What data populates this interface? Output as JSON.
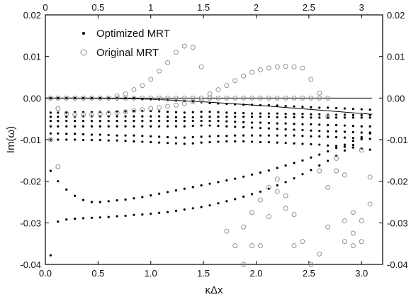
{
  "chart_data": {
    "type": "scatter",
    "title": "",
    "xlabel": "κΔx",
    "ylabel": "Im(ω)",
    "xlim": [
      0,
      3.2
    ],
    "ylim": [
      -0.04,
      0.02
    ],
    "x_ticks": [
      0,
      0.5,
      1.0,
      1.5,
      2.0,
      2.5,
      3.0
    ],
    "x_tick_labels": [
      "0.0",
      "0.5",
      "1.0",
      "1.5",
      "2.0",
      "2.5",
      "3.0"
    ],
    "top_x_tick_labels": [
      "0",
      "0.5",
      "1",
      "1.5",
      "2",
      "2.5",
      "3"
    ],
    "y_ticks": [
      0.02,
      0.01,
      0.0,
      -0.01,
      -0.02,
      -0.03,
      -0.04
    ],
    "y_tick_labels": [
      "0.02",
      "0.01",
      "0.00",
      "-0.01",
      "-0.02",
      "-0.03",
      "-0.04"
    ],
    "right_y_tick_labels": [
      "0.02",
      "0.01",
      "0.00",
      "-0.01",
      "-0.02",
      "-0.03",
      "-0.04"
    ],
    "grid": false,
    "legend_position": "top-left",
    "series": [
      {
        "name": "Optimized MRT",
        "marker": "filled-dot",
        "color": "#000000",
        "x": [
          0.05,
          0.12,
          0.2,
          0.28,
          0.36,
          0.44,
          0.52,
          0.6,
          0.68,
          0.76,
          0.84,
          0.92,
          1.0,
          1.08,
          1.16,
          1.24,
          1.32,
          1.4,
          1.48,
          1.56,
          1.64,
          1.72,
          1.8,
          1.88,
          1.96,
          2.04,
          2.12,
          2.2,
          2.28,
          2.36,
          2.44,
          2.52,
          2.6,
          2.68,
          2.76,
          2.84,
          2.92,
          3.0,
          3.08,
          0.05,
          0.12,
          0.2,
          0.28,
          0.36,
          0.44,
          0.52,
          0.6,
          0.68,
          0.76,
          0.84,
          0.92,
          1.0,
          1.08,
          1.16,
          1.24,
          1.32,
          1.4,
          1.48,
          1.56,
          1.64,
          1.72,
          1.8,
          1.88,
          1.96,
          2.04,
          2.12,
          2.2,
          2.28,
          2.36,
          2.44,
          2.52,
          2.6,
          2.68,
          2.76,
          2.84,
          2.92,
          3.0,
          3.08,
          0.05,
          0.12,
          0.2,
          0.28,
          0.36,
          0.44,
          0.52,
          0.6,
          0.68,
          0.76,
          0.84,
          0.92,
          1.0,
          1.08,
          1.16,
          1.24,
          1.32,
          1.4,
          1.48,
          1.56,
          1.64,
          1.72,
          1.8,
          1.88,
          1.96,
          2.04,
          2.12,
          2.2,
          2.28,
          2.36,
          2.44,
          2.52,
          2.6,
          2.68,
          2.76,
          2.84,
          2.92,
          3.0,
          3.08,
          0.05,
          0.12,
          0.2,
          0.28,
          0.36,
          0.44,
          0.52,
          0.6,
          0.68,
          0.76,
          0.84,
          0.92,
          1.0,
          1.08,
          1.16,
          1.24,
          1.32,
          1.4,
          1.48,
          1.56,
          1.64,
          1.72,
          1.8,
          1.88,
          1.96,
          2.04,
          2.12,
          2.2,
          2.28,
          2.36,
          2.44,
          2.52,
          2.6,
          2.68,
          2.76,
          2.84,
          2.92,
          3.0,
          3.08,
          0.05,
          0.12,
          0.2,
          0.28,
          0.36,
          0.44,
          0.52,
          0.6,
          0.68,
          0.76,
          0.84,
          0.92,
          1.0,
          1.08,
          1.16,
          1.24,
          1.32,
          1.4,
          1.48,
          1.56,
          1.64,
          1.72,
          1.8,
          1.88,
          1.96,
          2.04,
          2.12,
          2.2,
          2.28,
          2.36,
          2.44,
          2.52,
          2.6,
          2.68,
          2.76,
          2.84,
          2.92,
          3.0,
          3.08,
          0.05,
          0.12,
          0.2,
          0.28,
          0.36,
          0.44,
          0.52,
          0.6,
          0.68,
          0.76,
          0.84,
          0.92,
          1.0,
          1.08,
          1.16,
          1.24,
          1.32,
          1.4,
          1.48,
          1.56,
          1.64,
          1.72,
          1.8,
          1.88,
          1.96,
          2.04,
          2.12,
          2.2,
          2.28,
          2.36,
          2.44,
          2.52,
          2.6,
          2.68,
          2.76,
          2.84,
          2.92,
          3.0,
          3.08,
          0.05,
          0.12,
          0.2,
          0.28,
          0.36,
          0.44,
          0.52,
          0.6,
          0.68,
          0.76,
          0.84,
          0.92,
          1.0,
          1.08,
          1.16,
          1.24,
          1.32,
          1.4,
          1.48,
          1.56,
          1.64,
          1.72,
          1.8,
          1.88,
          1.96,
          2.04,
          2.12,
          2.2,
          2.28,
          2.36,
          2.44,
          2.52,
          2.6,
          2.68,
          2.76,
          2.84,
          2.92,
          3.0,
          3.08,
          0.05,
          0.12,
          0.2,
          0.28,
          0.36,
          0.44,
          0.52,
          0.6,
          0.68,
          0.76,
          0.84,
          0.92,
          1.0,
          1.08,
          1.16,
          1.24,
          1.32,
          1.4,
          1.48,
          1.56,
          1.64,
          1.72,
          1.8,
          1.88,
          1.96,
          2.04,
          2.12,
          2.2,
          2.28,
          2.36,
          2.44,
          2.52,
          2.6,
          2.68,
          2.76,
          2.84,
          2.92,
          3.0,
          3.08,
          0.05,
          0.12,
          0.2,
          0.28,
          0.36,
          0.44,
          0.52,
          0.6,
          0.68,
          0.76,
          0.84,
          0.92,
          1.0,
          1.08,
          1.16,
          1.24,
          1.32,
          1.4,
          1.48,
          1.56,
          1.64,
          1.72,
          1.8,
          1.88,
          1.96,
          2.04,
          2.12,
          2.2,
          2.28,
          2.36,
          2.44,
          2.52,
          2.6,
          2.68,
          2.76,
          2.84,
          2.92,
          3.0,
          3.08
        ],
        "y": [
          0.0,
          0.0,
          0.0,
          0.0,
          0.0,
          0.0,
          0.0,
          0.0,
          0.0,
          0.0,
          0.0,
          -0.0002,
          -0.0003,
          -0.0004,
          -0.0005,
          -0.0006,
          -0.0007,
          -0.0008,
          -0.001,
          -0.0012,
          -0.0013,
          -0.0014,
          -0.0015,
          -0.0016,
          -0.0016,
          -0.0017,
          -0.0017,
          -0.0018,
          -0.0019,
          -0.002,
          -0.0021,
          -0.0022,
          -0.0023,
          -0.0023,
          -0.0024,
          -0.0025,
          -0.0026,
          -0.0027,
          -0.0028,
          -0.0035,
          -0.0035,
          -0.0035,
          -0.0034,
          -0.0034,
          -0.0034,
          -0.0033,
          -0.0033,
          -0.0032,
          -0.0032,
          -0.0031,
          -0.0031,
          -0.0031,
          -0.0032,
          -0.0033,
          -0.0034,
          -0.0035,
          -0.0034,
          -0.0033,
          -0.0033,
          -0.0034,
          -0.0035,
          -0.0036,
          -0.0036,
          -0.0037,
          -0.0037,
          -0.0037,
          -0.0037,
          -0.0038,
          -0.0038,
          -0.0038,
          -0.0039,
          -0.0039,
          -0.004,
          -0.004,
          -0.004,
          -0.0041,
          -0.0041,
          -0.0041,
          -0.0045,
          -0.0045,
          -0.0045,
          -0.0045,
          -0.0044,
          -0.0044,
          -0.0044,
          -0.0044,
          -0.0044,
          -0.0044,
          -0.0044,
          -0.0044,
          -0.0044,
          -0.0044,
          -0.0045,
          -0.0046,
          -0.0046,
          -0.0046,
          -0.0045,
          -0.0045,
          -0.0045,
          -0.0045,
          -0.0045,
          -0.0045,
          -0.0045,
          -0.0045,
          -0.0045,
          -0.0046,
          -0.0046,
          -0.0046,
          -0.0046,
          -0.0047,
          -0.0047,
          -0.0047,
          -0.0047,
          -0.0047,
          -0.0047,
          -0.0047,
          -0.0047,
          -0.0055,
          -0.0055,
          -0.0055,
          -0.0055,
          -0.0055,
          -0.0055,
          -0.0055,
          -0.0055,
          -0.0055,
          -0.0055,
          -0.0055,
          -0.0055,
          -0.0055,
          -0.0055,
          -0.0055,
          -0.0055,
          -0.0055,
          -0.0055,
          -0.0055,
          -0.0055,
          -0.0055,
          -0.0056,
          -0.0057,
          -0.0058,
          -0.0059,
          -0.0059,
          -0.006,
          -0.0061,
          -0.0061,
          -0.0062,
          -0.0063,
          -0.0063,
          -0.0064,
          -0.0065,
          -0.0065,
          -0.0066,
          -0.0067,
          -0.0068,
          -0.0068,
          -0.0068,
          -0.0068,
          -0.0068,
          -0.0068,
          -0.0068,
          -0.0068,
          -0.0068,
          -0.0068,
          -0.0068,
          -0.0068,
          -0.0068,
          -0.0068,
          -0.0068,
          -0.0068,
          -0.0068,
          -0.0068,
          -0.0068,
          -0.0067,
          -0.0066,
          -0.0066,
          -0.0067,
          -0.0068,
          -0.0069,
          -0.007,
          -0.0071,
          -0.0072,
          -0.0073,
          -0.0074,
          -0.0075,
          -0.0076,
          -0.0077,
          -0.0078,
          -0.0079,
          -0.008,
          -0.008,
          -0.0081,
          -0.0082,
          -0.0083,
          -0.0083,
          -0.0085,
          -0.0085,
          -0.0086,
          -0.0086,
          -0.0087,
          -0.0088,
          -0.0088,
          -0.0089,
          -0.009,
          -0.009,
          -0.009,
          -0.0091,
          -0.0092,
          -0.0093,
          -0.0094,
          -0.0095,
          -0.0095,
          -0.0094,
          -0.0093,
          -0.0092,
          -0.0091,
          -0.0091,
          -0.009,
          -0.009,
          -0.009,
          -0.009,
          -0.009,
          -0.009,
          -0.009,
          -0.009,
          -0.0091,
          -0.0092,
          -0.0092,
          -0.0093,
          -0.0094,
          -0.0095,
          -0.0096,
          -0.0097,
          -0.0098,
          -0.01,
          -0.01,
          -0.01,
          -0.01,
          -0.0101,
          -0.0101,
          -0.0101,
          -0.0102,
          -0.0102,
          -0.0103,
          -0.0104,
          -0.0105,
          -0.0106,
          -0.0107,
          -0.0108,
          -0.0109,
          -0.011,
          -0.0109,
          -0.0107,
          -0.0106,
          -0.0105,
          -0.0104,
          -0.0104,
          -0.0104,
          -0.0105,
          -0.0106,
          -0.0106,
          -0.0107,
          -0.0108,
          -0.0109,
          -0.011,
          -0.0111,
          -0.0112,
          -0.0114,
          -0.0115,
          -0.0117,
          -0.0119,
          -0.0121,
          -0.0124,
          -0.0175,
          -0.02,
          -0.022,
          -0.0235,
          -0.0245,
          -0.025,
          -0.025,
          -0.0248,
          -0.0246,
          -0.0244,
          -0.0241,
          -0.0238,
          -0.0234,
          -0.023,
          -0.0226,
          -0.0222,
          -0.0218,
          -0.0214,
          -0.021,
          -0.0206,
          -0.0202,
          -0.0198,
          -0.0194,
          -0.0189,
          -0.0184,
          -0.0179,
          -0.0174,
          -0.0168,
          -0.0162,
          -0.0156,
          -0.015,
          -0.0143,
          -0.0136,
          -0.0128,
          -0.012,
          -0.0112,
          -0.0103,
          -0.0094,
          -0.0084,
          -0.0378,
          -0.0297,
          -0.0292,
          -0.029,
          -0.0289,
          -0.0288,
          -0.0287,
          -0.0286,
          -0.0284,
          -0.0283,
          -0.0281,
          -0.028,
          -0.0278,
          -0.0276,
          -0.0274,
          -0.0271,
          -0.0268,
          -0.0265,
          -0.0262,
          -0.0258,
          -0.0253,
          -0.0248,
          -0.0243,
          -0.0237,
          -0.0231,
          -0.0225,
          -0.0218,
          -0.021,
          -0.0202,
          -0.0193,
          -0.0183,
          -0.0173,
          -0.0162,
          -0.0151,
          -0.0139,
          -0.0126,
          -0.0113,
          -0.0099,
          -0.0085
        ]
      },
      {
        "name": "Original MRT",
        "marker": "open-circle",
        "color": "#888888",
        "x": [
          0.05,
          0.12,
          0.2,
          0.28,
          0.36,
          0.44,
          0.52,
          0.6,
          0.68,
          0.76,
          0.84,
          0.92,
          1.0,
          1.08,
          1.16,
          1.24,
          1.32,
          1.4,
          1.48,
          1.56,
          1.64,
          1.72,
          1.8,
          1.88,
          1.96,
          2.04,
          2.12,
          2.2,
          2.28,
          2.36,
          2.44,
          2.52,
          2.6,
          2.68,
          0.05,
          0.12,
          0.2,
          0.28,
          0.36,
          0.44,
          0.52,
          0.6,
          0.68,
          0.76,
          0.84,
          0.92,
          1.0,
          1.08,
          1.16,
          1.24,
          1.32,
          1.4,
          1.48,
          0.12,
          0.2,
          0.28,
          0.36,
          0.44,
          0.52,
          0.6,
          0.68,
          0.76,
          0.84,
          0.92,
          1.0,
          1.08,
          1.16,
          1.24,
          1.32,
          1.4,
          1.48,
          1.56,
          1.56,
          1.64,
          1.72,
          1.8,
          1.88,
          1.96,
          2.04,
          2.12,
          2.2,
          2.28,
          2.36,
          2.44,
          2.52,
          2.6,
          2.68,
          2.76,
          2.84,
          2.92,
          3.0,
          3.08,
          0.05,
          0.12,
          1.72,
          1.8,
          1.88,
          1.96,
          2.04,
          2.12,
          2.2,
          2.28,
          2.36,
          2.44,
          2.52,
          2.6,
          2.68,
          2.76,
          2.84,
          2.92,
          3.0,
          3.08,
          1.88,
          1.96,
          2.04,
          2.12,
          2.2,
          2.28,
          2.36,
          2.6,
          2.68,
          2.84,
          2.92,
          3.0
        ],
        "y": [
          0.0,
          0.0,
          0.0,
          0.0,
          0.0,
          0.0,
          0.0,
          0.0,
          0.0,
          0.0,
          0.0,
          0.0,
          0.0,
          0.0,
          0.0,
          0.0,
          0.0,
          0.0,
          0.0,
          0.0,
          0.0,
          0.0,
          0.0,
          0.0,
          0.0,
          0.0,
          0.0,
          0.0,
          0.0,
          0.0,
          0.0,
          0.0,
          0.0,
          0.0,
          0.0,
          0.0,
          0.0,
          0.0,
          0.0,
          0.0,
          0.0,
          0.0,
          0.0005,
          0.001,
          0.002,
          0.003,
          0.0045,
          0.0065,
          0.0085,
          0.011,
          0.0125,
          0.0122,
          0.0075,
          -0.0025,
          -0.0037,
          -0.004,
          -0.004,
          -0.004,
          -0.0038,
          -0.0037,
          -0.0035,
          -0.0033,
          -0.003,
          -0.0028,
          -0.0025,
          -0.0023,
          -0.002,
          -0.0017,
          -0.0013,
          -0.0009,
          -0.0005,
          0.0,
          0.001,
          0.002,
          0.003,
          0.0042,
          0.0053,
          0.0062,
          0.0068,
          0.0072,
          0.0075,
          0.0076,
          0.0075,
          0.0072,
          0.0045,
          0.0012,
          -0.0045,
          -0.0145,
          -0.0345,
          -0.0355,
          -0.0345,
          -0.019,
          -0.01,
          -0.0165,
          -0.032,
          -0.0355,
          -0.031,
          -0.0275,
          -0.0245,
          -0.0215,
          -0.0195,
          -0.0235,
          -0.028,
          -0.0345,
          -0.0405,
          -0.0375,
          -0.031,
          -0.0175,
          -0.0295,
          -0.0275,
          -0.0295,
          -0.0255,
          -0.0405,
          -0.0355,
          -0.0355,
          -0.0285,
          -0.0225,
          -0.0265,
          -0.0355,
          -0.0175,
          -0.0215,
          -0.0185,
          -0.0325,
          -0.0125
        ]
      },
      {
        "name": "",
        "marker": "line",
        "color": "#000000",
        "x": [
          0.0,
          0.3,
          0.6,
          0.9,
          1.2,
          1.5,
          1.8,
          2.1,
          2.4,
          2.7,
          3.0,
          3.1
        ],
        "y": [
          0.0,
          0.0,
          -0.0001,
          -0.0002,
          -0.0005,
          -0.0009,
          -0.0014,
          -0.0019,
          -0.0025,
          -0.0031,
          -0.0037,
          -0.0039
        ]
      },
      {
        "name": "",
        "marker": "line",
        "color": "#000000",
        "x": [
          0.0,
          3.1
        ],
        "y": [
          0.0,
          0.0
        ]
      }
    ]
  }
}
